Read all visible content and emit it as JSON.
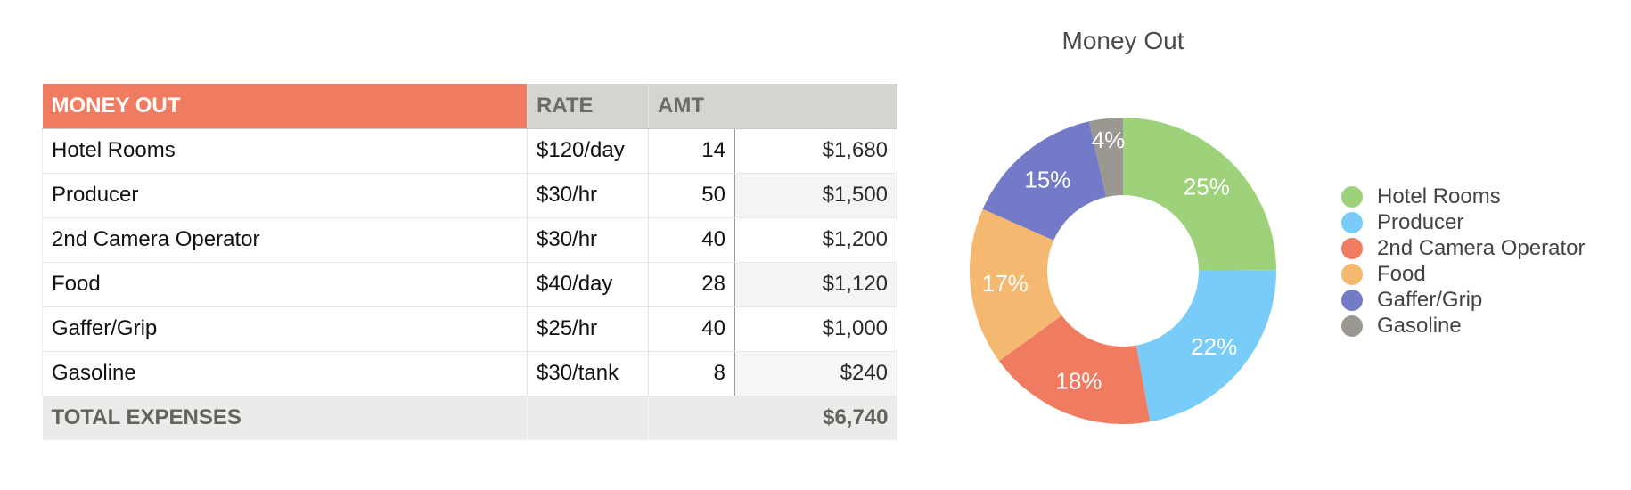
{
  "table": {
    "headers": {
      "name": "MONEY OUT",
      "rate": "RATE",
      "amt": "AMT"
    },
    "rows": [
      {
        "name": "Hotel Rooms",
        "rate": "$120/day",
        "qty": "14",
        "amount": "$1,680"
      },
      {
        "name": "Producer",
        "rate": "$30/hr",
        "qty": "50",
        "amount": "$1,500"
      },
      {
        "name": "2nd Camera Operator",
        "rate": "$30/hr",
        "qty": "40",
        "amount": "$1,200"
      },
      {
        "name": "Food",
        "rate": "$40/day",
        "qty": "28",
        "amount": "$1,120"
      },
      {
        "name": "Gaffer/Grip",
        "rate": "$25/hr",
        "qty": "40",
        "amount": "$1,000"
      },
      {
        "name": "Gasoline",
        "rate": "$30/tank",
        "qty": "8",
        "amount": "$240"
      }
    ],
    "footer": {
      "label": "TOTAL EXPENSES",
      "total": "$6,740"
    }
  },
  "chart_data": {
    "type": "pie",
    "title": "Money Out",
    "donut": true,
    "legend_position": "right",
    "categories": [
      "Hotel Rooms",
      "Producer",
      "2nd Camera Operator",
      "Food",
      "Gaffer/Grip",
      "Gasoline"
    ],
    "values": [
      1680,
      1500,
      1200,
      1120,
      1000,
      240
    ],
    "labels": [
      "25%",
      "22%",
      "18%",
      "17%",
      "15%",
      "4%"
    ],
    "colors": [
      "#9dd17a",
      "#79ccf9",
      "#ef7c61",
      "#f5b870",
      "#737bc8",
      "#9b9892"
    ]
  }
}
